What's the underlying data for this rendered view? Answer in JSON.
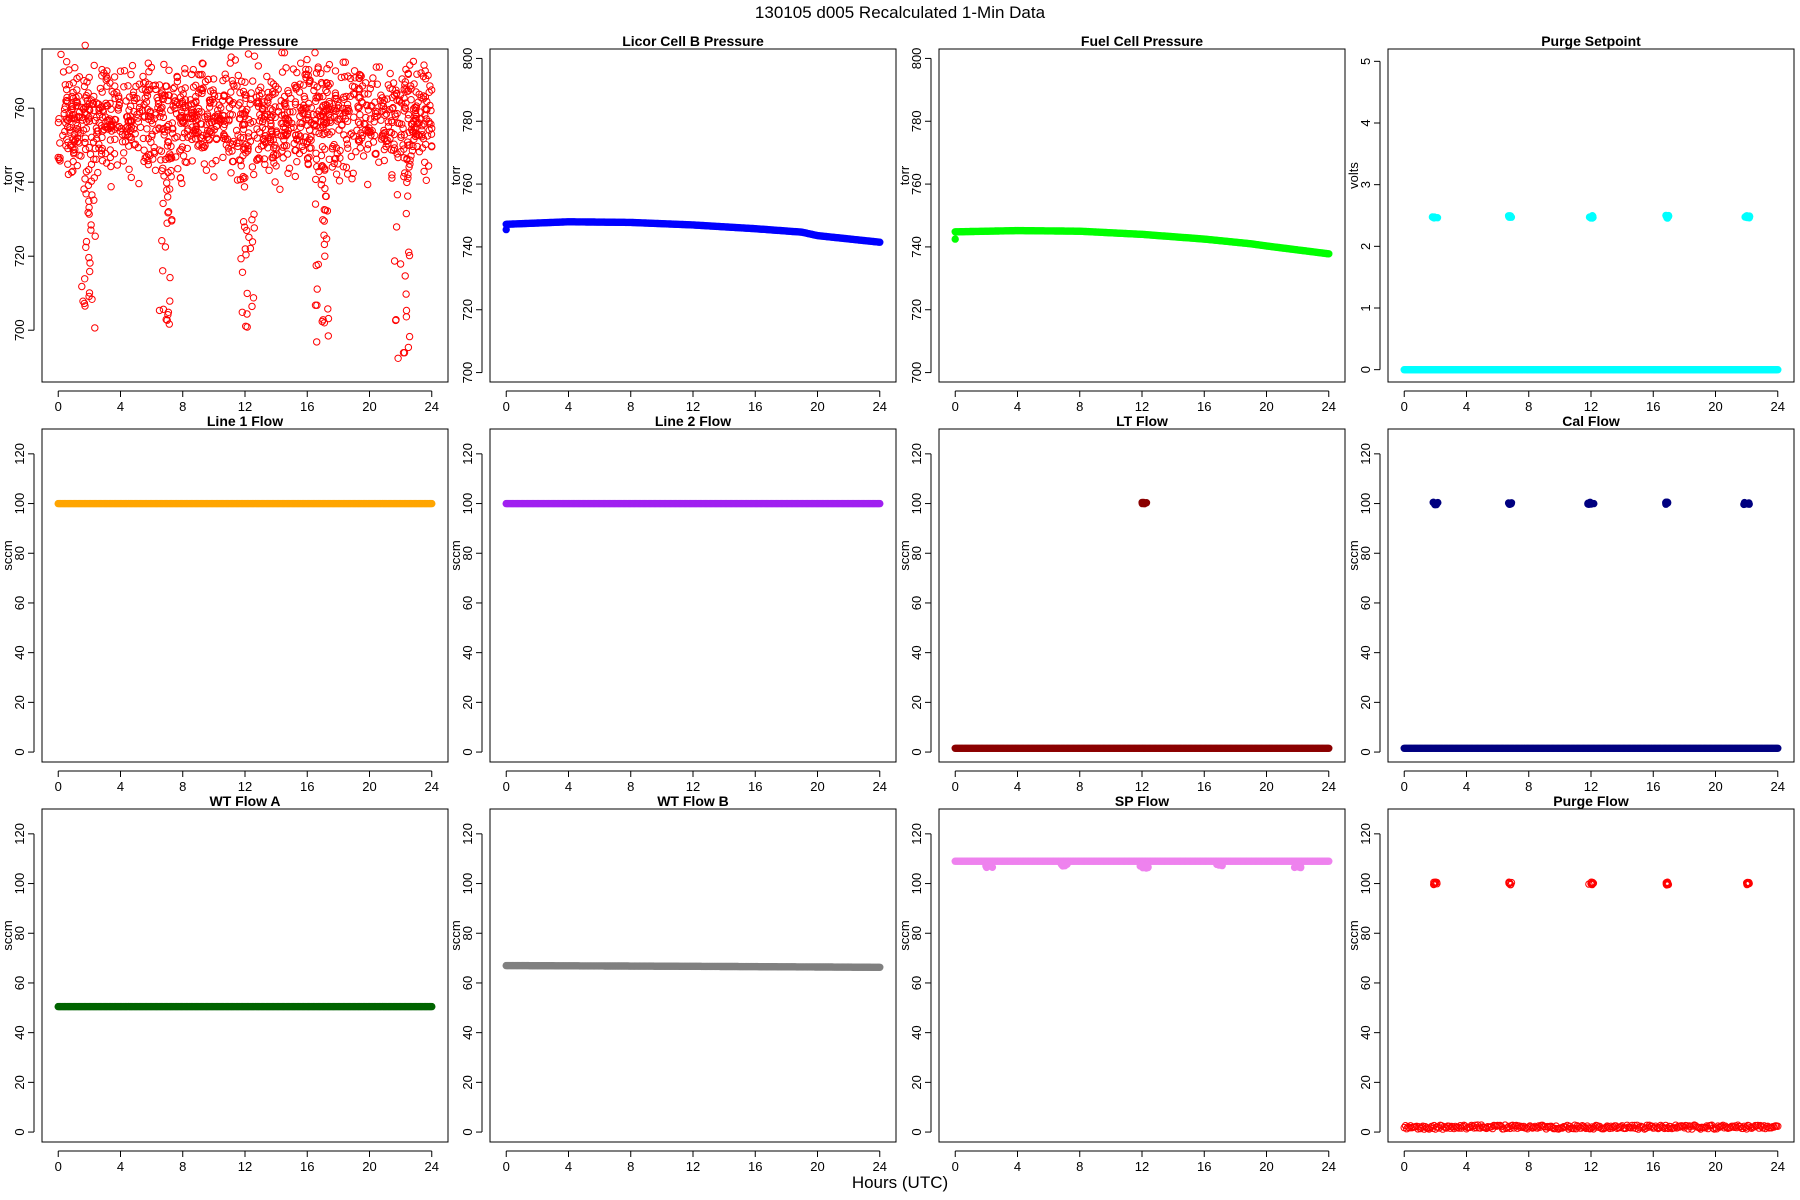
{
  "figure": {
    "title": "130105   d005   Recalculated 1-Min Data",
    "xlabel": "Hours (UTC)"
  },
  "chart_data": [
    {
      "type": "scatter",
      "title": "Fridge Pressure",
      "ylabel": "torr",
      "color": "#ff0000",
      "marker": "open",
      "xlim": [
        0,
        24
      ],
      "ylim": [
        686,
        776
      ],
      "xticks": [
        0,
        4,
        8,
        12,
        16,
        20,
        24
      ],
      "yticks": [
        700,
        720,
        740,
        760
      ],
      "series": [
        {
          "gen": "noise",
          "base": 757,
          "spread": 7,
          "n": 1300,
          "seed": 11,
          "dips": [
            {
              "x": [
                1.4,
                2.4
              ],
              "y": [
                699,
                750
              ]
            },
            {
              "x": [
                6.5,
                7.3
              ],
              "y": [
                700,
                748
              ]
            },
            {
              "x": [
                11.7,
                12.6
              ],
              "y": [
                698,
                750
              ]
            },
            {
              "x": [
                16.5,
                17.4
              ],
              "y": [
                693,
                746
              ]
            },
            {
              "x": [
                21.6,
                22.6
              ],
              "y": [
                687,
                748
              ]
            }
          ],
          "extra": [
            [
              16.5,
              775
            ],
            [
              9.3,
              772
            ],
            [
              4.0,
              770
            ]
          ]
        }
      ]
    },
    {
      "type": "scatter",
      "title": "Licor Cell B Pressure",
      "ylabel": "torr",
      "color": "#0000ff",
      "marker": "filled",
      "xlim": [
        0,
        24
      ],
      "ylim": [
        697,
        803
      ],
      "xticks": [
        0,
        4,
        8,
        12,
        16,
        20,
        24
      ],
      "yticks": [
        700,
        720,
        740,
        760,
        780,
        800
      ],
      "series": [
        {
          "gen": "curve",
          "points": [
            [
              0,
              747.2
            ],
            [
              4,
              748
            ],
            [
              8,
              747.8
            ],
            [
              12,
              747
            ],
            [
              16,
              745.8
            ],
            [
              19,
              744.7
            ],
            [
              20,
              743.6
            ],
            [
              24,
              741.5
            ]
          ],
          "extra": [
            [
              0,
              745.5
            ]
          ]
        }
      ]
    },
    {
      "type": "scatter",
      "title": "Fuel Cell Pressure",
      "ylabel": "torr",
      "color": "#00ff00",
      "marker": "filled",
      "xlim": [
        0,
        24
      ],
      "ylim": [
        697,
        803
      ],
      "xticks": [
        0,
        4,
        8,
        12,
        16,
        20,
        24
      ],
      "yticks": [
        700,
        720,
        740,
        760,
        780,
        800
      ],
      "series": [
        {
          "gen": "curve",
          "points": [
            [
              0,
              744.8
            ],
            [
              4,
              745.2
            ],
            [
              8,
              745
            ],
            [
              12,
              744
            ],
            [
              16,
              742.5
            ],
            [
              19,
              741
            ],
            [
              20,
              740.3
            ],
            [
              24,
              737.8
            ]
          ],
          "extra": [
            [
              0,
              742.5
            ]
          ]
        }
      ]
    },
    {
      "type": "scatter",
      "title": "Purge Setpoint",
      "ylabel": "volts",
      "color": "#00ffff",
      "marker": "filled",
      "xlim": [
        0,
        24
      ],
      "ylim": [
        -0.2,
        5.2
      ],
      "xticks": [
        0,
        4,
        8,
        12,
        16,
        20,
        24
      ],
      "yticks": [
        0,
        1,
        2,
        3,
        4,
        5
      ],
      "series": [
        {
          "gen": "flat",
          "y": 0,
          "extra_clusters": [
            {
              "x": [
                1.8,
                2.2
              ],
              "y": 2.48
            },
            {
              "x": [
                6.7,
                6.9
              ],
              "y": 2.48
            },
            {
              "x": [
                11.8,
                12.2
              ],
              "y": 2.48
            },
            {
              "x": [
                16.8,
                17.0
              ],
              "y": 2.48
            },
            {
              "x": [
                21.8,
                22.2
              ],
              "y": 2.48
            }
          ]
        }
      ]
    },
    {
      "type": "scatter",
      "title": "Line 1 Flow",
      "ylabel": "sccm",
      "color": "#ffa500",
      "marker": "filled",
      "xlim": [
        0,
        24
      ],
      "ylim": [
        -4,
        130
      ],
      "xticks": [
        0,
        4,
        8,
        12,
        16,
        20,
        24
      ],
      "yticks": [
        0,
        20,
        40,
        60,
        80,
        100,
        120
      ],
      "series": [
        {
          "gen": "flat",
          "y": 100
        }
      ]
    },
    {
      "type": "scatter",
      "title": "Line 2 Flow",
      "ylabel": "sccm",
      "color": "#a020f0",
      "marker": "filled",
      "xlim": [
        0,
        24
      ],
      "ylim": [
        -4,
        130
      ],
      "xticks": [
        0,
        4,
        8,
        12,
        16,
        20,
        24
      ],
      "yticks": [
        0,
        20,
        40,
        60,
        80,
        100,
        120
      ],
      "series": [
        {
          "gen": "flat",
          "y": 100
        }
      ]
    },
    {
      "type": "scatter",
      "title": "LT Flow",
      "ylabel": "sccm",
      "color": "#8b0000",
      "marker": "filled",
      "xlim": [
        0,
        24
      ],
      "ylim": [
        -4,
        130
      ],
      "xticks": [
        0,
        4,
        8,
        12,
        16,
        20,
        24
      ],
      "yticks": [
        0,
        20,
        40,
        60,
        80,
        100,
        120
      ],
      "series": [
        {
          "gen": "flat",
          "y": 1.5,
          "extra_clusters": [
            {
              "x": [
                12.0,
                12.3
              ],
              "y": 100
            }
          ]
        }
      ]
    },
    {
      "type": "scatter",
      "title": "Cal Flow",
      "ylabel": "sccm",
      "color": "#000080",
      "marker": "filled",
      "xlim": [
        0,
        24
      ],
      "ylim": [
        -4,
        130
      ],
      "xticks": [
        0,
        4,
        8,
        12,
        16,
        20,
        24
      ],
      "yticks": [
        0,
        20,
        40,
        60,
        80,
        100,
        120
      ],
      "series": [
        {
          "gen": "flat",
          "y": 1.5,
          "extra_clusters": [
            {
              "x": [
                1.8,
                2.2
              ],
              "y": 100
            },
            {
              "x": [
                6.7,
                6.9
              ],
              "y": 100
            },
            {
              "x": [
                11.8,
                12.2
              ],
              "y": 100
            },
            {
              "x": [
                16.8,
                17.0
              ],
              "y": 100
            },
            {
              "x": [
                21.8,
                22.2
              ],
              "y": 100
            }
          ]
        }
      ]
    },
    {
      "type": "scatter",
      "title": "WT Flow A",
      "ylabel": "sccm",
      "color": "#006400",
      "marker": "filled",
      "xlim": [
        0,
        24
      ],
      "ylim": [
        -4,
        130
      ],
      "xticks": [
        0,
        4,
        8,
        12,
        16,
        20,
        24
      ],
      "yticks": [
        0,
        20,
        40,
        60,
        80,
        100,
        120
      ],
      "series": [
        {
          "gen": "flat",
          "y": 50.5
        }
      ]
    },
    {
      "type": "scatter",
      "title": "WT Flow B",
      "ylabel": "sccm",
      "color": "#808080",
      "marker": "filled",
      "xlim": [
        0,
        24
      ],
      "ylim": [
        -4,
        130
      ],
      "xticks": [
        0,
        4,
        8,
        12,
        16,
        20,
        24
      ],
      "yticks": [
        0,
        20,
        40,
        60,
        80,
        100,
        120
      ],
      "series": [
        {
          "gen": "curve",
          "points": [
            [
              0,
              67
            ],
            [
              12,
              66.7
            ],
            [
              24,
              66.3
            ]
          ]
        }
      ]
    },
    {
      "type": "scatter",
      "title": "SP Flow",
      "ylabel": "sccm",
      "color": "#ee82ee",
      "marker": "filled",
      "xlim": [
        0,
        24
      ],
      "ylim": [
        -4,
        130
      ],
      "xticks": [
        0,
        4,
        8,
        12,
        16,
        20,
        24
      ],
      "yticks": [
        0,
        20,
        40,
        60,
        80,
        100,
        120
      ],
      "series": [
        {
          "gen": "flat",
          "y": 109,
          "extra_clusters": [
            {
              "x": [
                1.8,
                2.4
              ],
              "y": 107
            },
            {
              "x": [
                6.8,
                7.2
              ],
              "y": 107.5
            },
            {
              "x": [
                11.8,
                12.4
              ],
              "y": 106.8
            },
            {
              "x": [
                16.8,
                17.2
              ],
              "y": 107.5
            },
            {
              "x": [
                21.8,
                22.4
              ],
              "y": 106.8
            }
          ]
        }
      ]
    },
    {
      "type": "scatter",
      "title": "Purge Flow",
      "ylabel": "sccm",
      "color": "#ff0000",
      "marker": "open",
      "xlim": [
        0,
        24
      ],
      "ylim": [
        -4,
        130
      ],
      "xticks": [
        0,
        4,
        8,
        12,
        16,
        20,
        24
      ],
      "yticks": [
        0,
        20,
        40,
        60,
        80,
        100,
        120
      ],
      "series": [
        {
          "gen": "flat",
          "y": 2,
          "jitter": 0.8,
          "extra_clusters": [
            {
              "x": [
                1.8,
                2.2
              ],
              "y": 100
            },
            {
              "x": [
                6.7,
                6.9
              ],
              "y": 100
            },
            {
              "x": [
                11.8,
                12.2
              ],
              "y": 100
            },
            {
              "x": [
                16.8,
                17.0
              ],
              "y": 100
            },
            {
              "x": [
                21.8,
                22.2
              ],
              "y": 100
            }
          ]
        }
      ]
    }
  ]
}
